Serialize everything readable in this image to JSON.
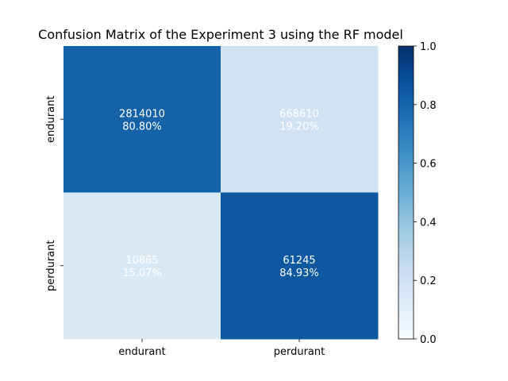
{
  "chart_data": {
    "type": "heatmap",
    "title": "Confusion Matrix of the Experiment 3 using the RF model",
    "row_labels": [
      "endurant",
      "perdurant"
    ],
    "col_labels": [
      "endurant",
      "perdurant"
    ],
    "counts": [
      [
        2814010,
        668610
      ],
      [
        10865,
        61245
      ]
    ],
    "percent_labels": [
      [
        "80.80%",
        "19.20%"
      ],
      [
        "15.07%",
        "84.93%"
      ]
    ],
    "values": [
      [
        0.808,
        0.192
      ],
      [
        0.1507,
        0.8493
      ]
    ],
    "colorbar": {
      "range": [
        0.0,
        1.0
      ],
      "ticks": [
        "0.0",
        "0.2",
        "0.4",
        "0.6",
        "0.8",
        "1.0"
      ],
      "colormap": "Blues"
    },
    "colors": {
      "cell_text": "#ffffff",
      "axis_text": "#000000"
    }
  }
}
